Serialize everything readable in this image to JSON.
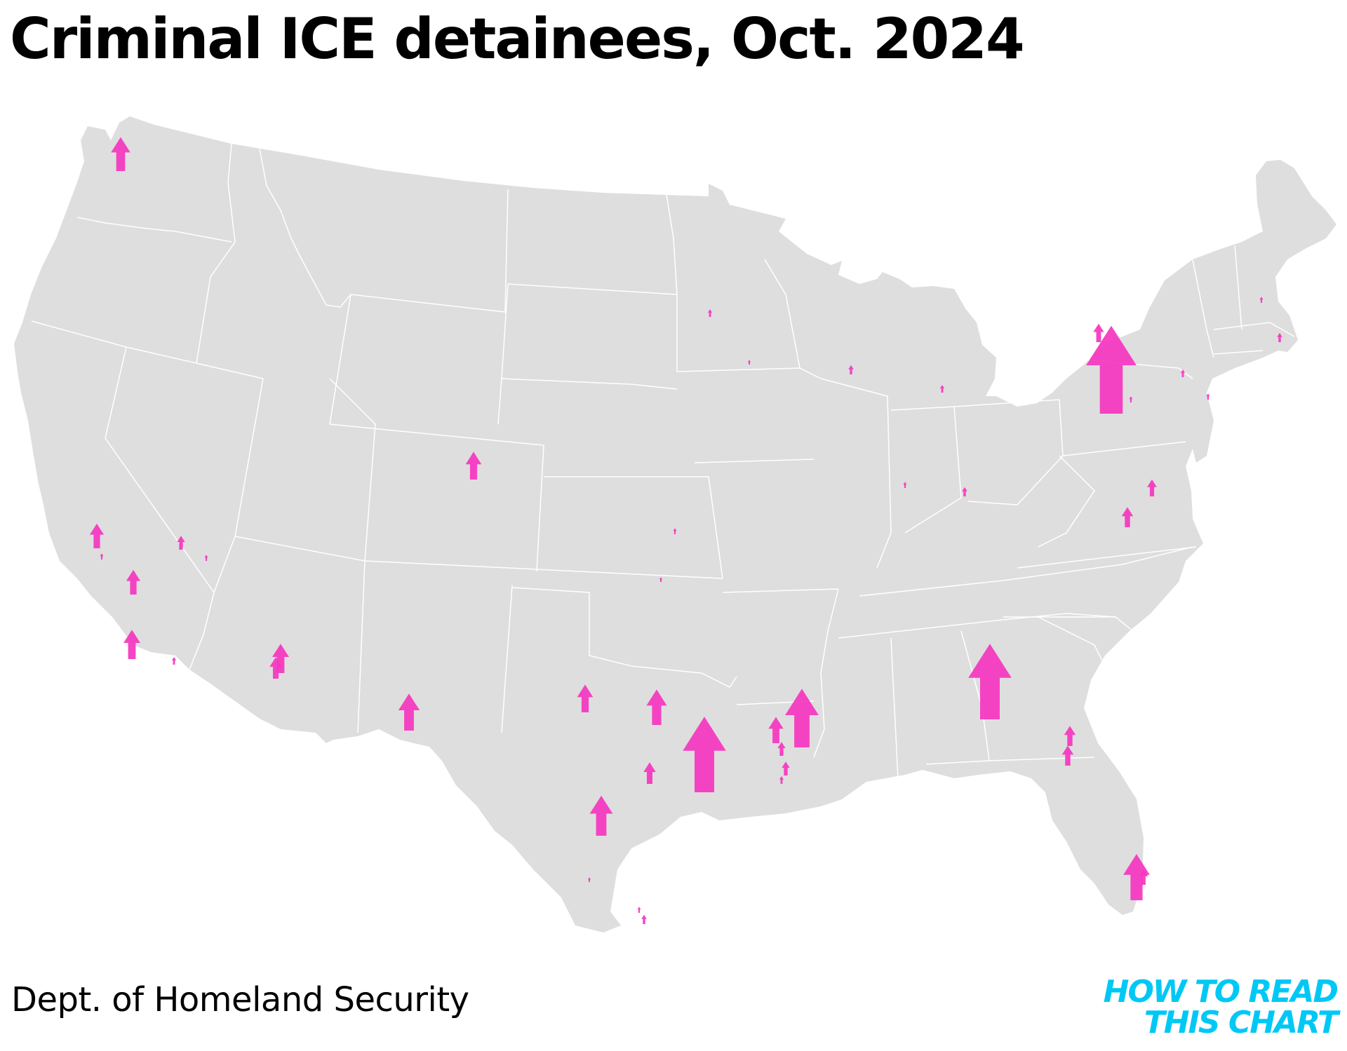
{
  "title": "Criminal ICE detainees, Oct. 2024",
  "source": "Dept. of Homeland Security",
  "brand": {
    "line1": "HOW TO READ",
    "line2": "THIS CHART"
  },
  "colors": {
    "land": "#dedede",
    "borders": "#ffffff",
    "arrow": "#f535bf",
    "brand": "#00c8f5"
  },
  "map_data": {
    "type": "proportional-arrow-map",
    "region": "contiguous United States",
    "facilities": [
      {
        "id": "wa-tacoma",
        "size": 0.22
      },
      {
        "id": "ca-central-1",
        "size": 0.16
      },
      {
        "id": "ca-central-2",
        "size": 0.04
      },
      {
        "id": "ca-bakersfield",
        "size": 0.16
      },
      {
        "id": "ca-socal",
        "size": 0.19
      },
      {
        "id": "ca-imperial",
        "size": 0.05
      },
      {
        "id": "nv-1",
        "size": 0.09
      },
      {
        "id": "nv-2",
        "size": 0.04
      },
      {
        "id": "az-florence",
        "size": 0.19
      },
      {
        "id": "az-eloy",
        "size": 0.14
      },
      {
        "id": "co-aurora",
        "size": 0.18
      },
      {
        "id": "mn-1",
        "size": 0.05
      },
      {
        "id": "ia-1",
        "size": 0.03
      },
      {
        "id": "wi-1",
        "size": 0.06
      },
      {
        "id": "mi-1",
        "size": 0.05
      },
      {
        "id": "ks-1",
        "size": 0.04
      },
      {
        "id": "ok-1",
        "size": 0.03
      },
      {
        "id": "il-1",
        "size": 0.04
      },
      {
        "id": "in-1",
        "size": 0.06
      },
      {
        "id": "ny-batavia",
        "size": 0.57
      },
      {
        "id": "ny-buffalo",
        "size": 0.12
      },
      {
        "id": "pa-1",
        "size": 0.04
      },
      {
        "id": "nj-1",
        "size": 0.05
      },
      {
        "id": "nj-2",
        "size": 0.04
      },
      {
        "id": "ma-1",
        "size": 0.06
      },
      {
        "id": "nh-1",
        "size": 0.04
      },
      {
        "id": "va-farmville",
        "size": 0.11
      },
      {
        "id": "va-2",
        "size": 0.13
      },
      {
        "id": "nm-otero",
        "size": 0.24
      },
      {
        "id": "tx-1",
        "size": 0.18
      },
      {
        "id": "tx-2",
        "size": 0.23
      },
      {
        "id": "tx-conroe",
        "size": 0.49
      },
      {
        "id": "tx-3",
        "size": 0.14
      },
      {
        "id": "tx-dilley",
        "size": 0.26
      },
      {
        "id": "tx-south-1",
        "size": 0.03
      },
      {
        "id": "tx-valley-1",
        "size": 0.04
      },
      {
        "id": "tx-valley-2",
        "size": 0.06
      },
      {
        "id": "la-jena",
        "size": 0.38
      },
      {
        "id": "la-2",
        "size": 0.17
      },
      {
        "id": "la-3",
        "size": 0.09
      },
      {
        "id": "la-4",
        "size": 0.09
      },
      {
        "id": "la-5",
        "size": 0.05
      },
      {
        "id": "ga-stewart",
        "size": 0.49
      },
      {
        "id": "ga-folkston-1",
        "size": 0.13
      },
      {
        "id": "ga-folkston-2",
        "size": 0.13
      },
      {
        "id": "fl-krome",
        "size": 0.3
      },
      {
        "id": "fl-2",
        "size": 0.1
      }
    ]
  }
}
